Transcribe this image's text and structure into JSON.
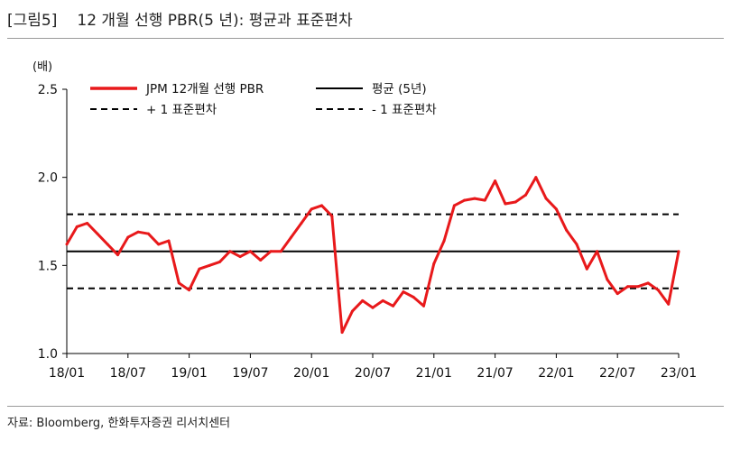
{
  "figure": {
    "label": "[그림5]",
    "title": "12 개월 선행 PBR(5 년): 평균과 표준편차",
    "source": "자료: Bloomberg, 한화투자증권 리서치센터"
  },
  "chart_data": {
    "type": "line",
    "ylabel": "(배)",
    "ylim": [
      1.0,
      2.5
    ],
    "yticks": [
      "2.5",
      "2.0",
      "1.5",
      "1.0"
    ],
    "xlim": [
      "2018-01",
      "2023-01"
    ],
    "xticks": [
      "18/01",
      "18/07",
      "19/01",
      "19/07",
      "20/01",
      "20/07",
      "21/01",
      "21/07",
      "22/01",
      "22/07",
      "23/01"
    ],
    "legend_position": "top-left",
    "series": [
      {
        "name": "JPM 12개월 선행 PBR",
        "color": "#e8191b",
        "style": "solid",
        "x": [
          "2018-01",
          "2018-02",
          "2018-03",
          "2018-04",
          "2018-05",
          "2018-06",
          "2018-07",
          "2018-08",
          "2018-09",
          "2018-10",
          "2018-11",
          "2018-12",
          "2019-01",
          "2019-02",
          "2019-03",
          "2019-04",
          "2019-05",
          "2019-06",
          "2019-07",
          "2019-08",
          "2019-09",
          "2019-10",
          "2019-11",
          "2019-12",
          "2020-01",
          "2020-02",
          "2020-03",
          "2020-04",
          "2020-05",
          "2020-06",
          "2020-07",
          "2020-08",
          "2020-09",
          "2020-10",
          "2020-11",
          "2020-12",
          "2021-01",
          "2021-02",
          "2021-03",
          "2021-04",
          "2021-05",
          "2021-06",
          "2021-07",
          "2021-08",
          "2021-09",
          "2021-10",
          "2021-11",
          "2021-12",
          "2022-01",
          "2022-02",
          "2022-03",
          "2022-04",
          "2022-05",
          "2022-06",
          "2022-07",
          "2022-08",
          "2022-09",
          "2022-10",
          "2022-11",
          "2022-12",
          "2023-01"
        ],
        "values": [
          1.62,
          1.72,
          1.74,
          1.68,
          1.62,
          1.56,
          1.66,
          1.69,
          1.68,
          1.62,
          1.64,
          1.4,
          1.36,
          1.48,
          1.5,
          1.52,
          1.58,
          1.55,
          1.58,
          1.53,
          1.58,
          1.58,
          1.66,
          1.74,
          1.82,
          1.84,
          1.78,
          1.12,
          1.24,
          1.3,
          1.26,
          1.3,
          1.27,
          1.35,
          1.32,
          1.27,
          1.51,
          1.64,
          1.84,
          1.87,
          1.88,
          1.87,
          1.98,
          1.85,
          1.86,
          1.9,
          2.0,
          1.88,
          1.82,
          1.7,
          1.62,
          1.48,
          1.58,
          1.42,
          1.34,
          1.38,
          1.38,
          1.4,
          1.36,
          1.28,
          1.58
        ]
      },
      {
        "name": "평균 (5년)",
        "color": "#000000",
        "style": "solid",
        "value": 1.58
      },
      {
        "name": "+ 1 표준편차",
        "color": "#000000",
        "style": "dashed",
        "value": 1.79
      },
      {
        "name": "- 1 표준편차",
        "color": "#000000",
        "style": "dashed",
        "value": 1.37
      }
    ]
  }
}
